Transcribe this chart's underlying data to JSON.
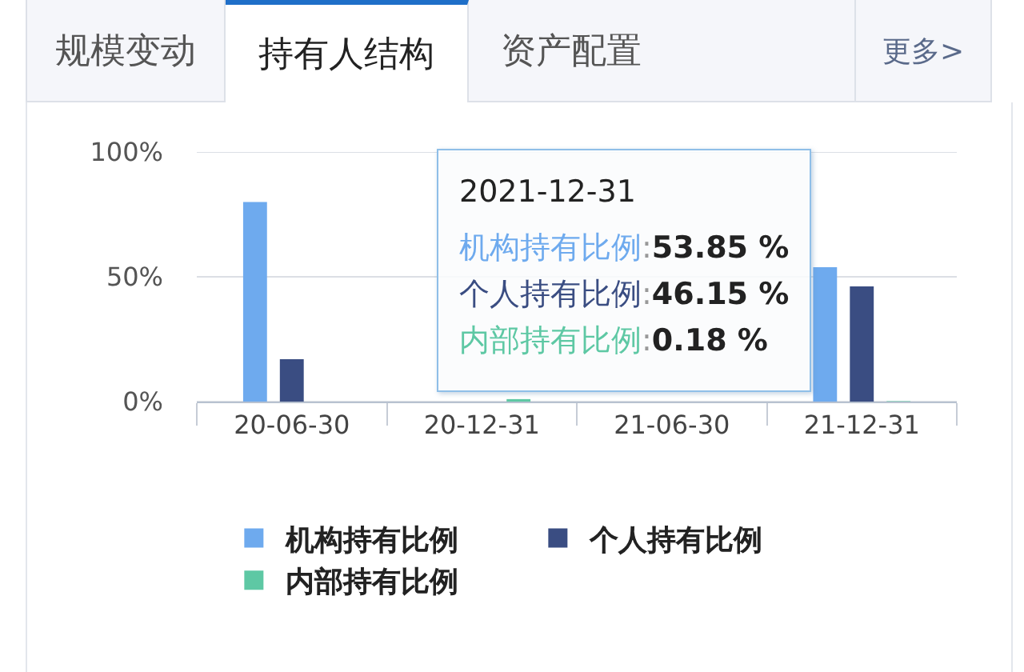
{
  "chart_data": {
    "type": "bar",
    "title": "持有人结构",
    "categories": [
      "20-06-30",
      "20-12-31",
      "21-06-30",
      "21-12-31"
    ],
    "series": [
      {
        "name": "机构持有比例",
        "color": "#6eaaee",
        "values": [
          80,
          null,
          null,
          53.85
        ]
      },
      {
        "name": "个人持有比例",
        "color": "#3a4d82",
        "values": [
          17,
          null,
          null,
          46.15
        ]
      },
      {
        "name": "内部持有比例",
        "color": "#5ec8a4",
        "values": [
          0,
          1,
          0,
          0.18
        ]
      }
    ],
    "ylim": [
      0,
      100
    ],
    "yticks": [
      {
        "value": 0,
        "label": "0%"
      },
      {
        "value": 50,
        "label": "50%"
      },
      {
        "value": 100,
        "label": "100%"
      }
    ],
    "grid": "y",
    "legend": "bottom",
    "annotations": [
      "规模变动",
      "资产配置",
      "更多>",
      "2021-12-31",
      "机构持有比例:53.85 %",
      "个人持有比例:46.15 %",
      "内部持有比例:0.18 %"
    ]
  }
}
